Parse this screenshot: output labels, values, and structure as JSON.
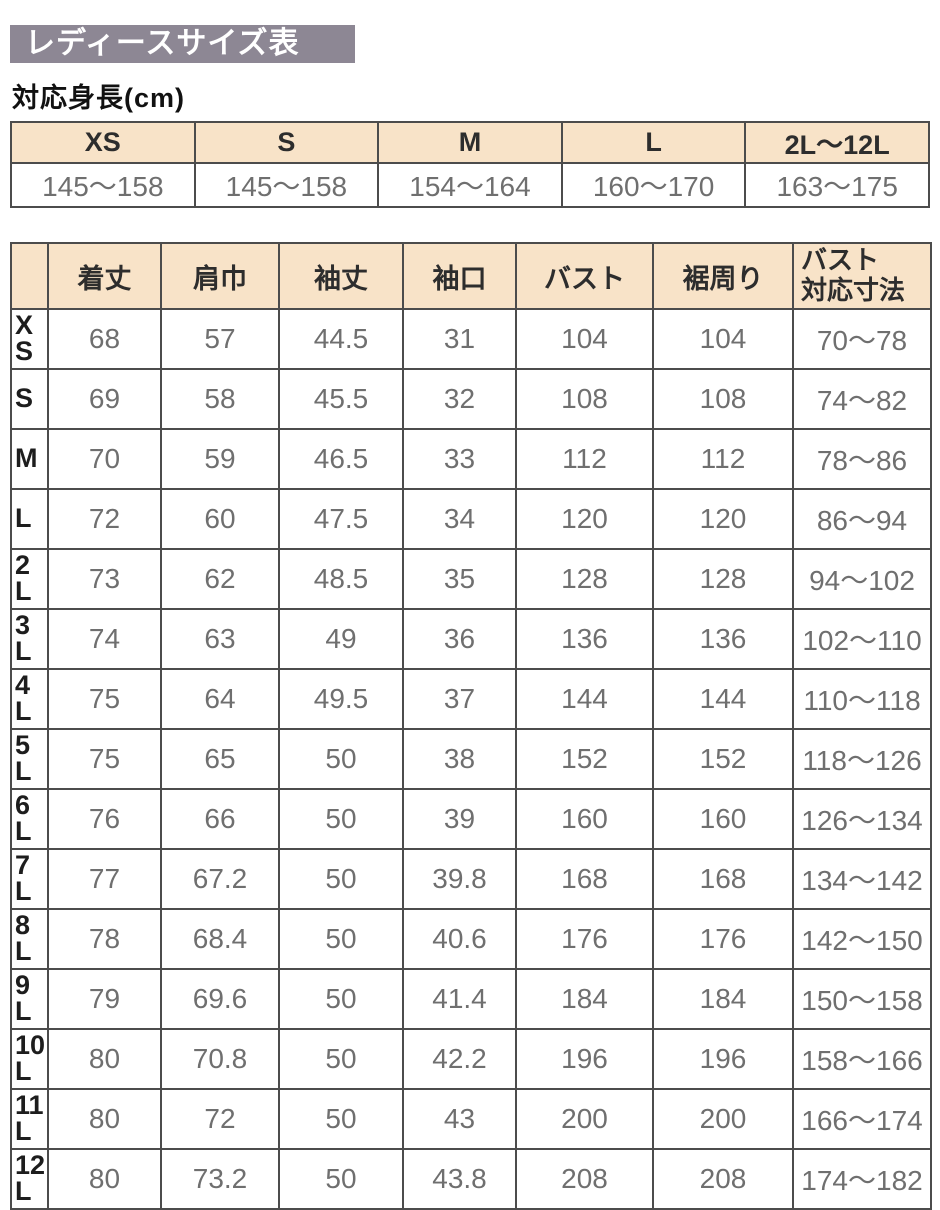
{
  "page": {
    "title": "レディースサイズ表",
    "height_table_title": "対応身長(cm)"
  },
  "height_table": {
    "columns": [
      "XS",
      "S",
      "M",
      "L",
      "2L〜12L"
    ],
    "values": [
      "145〜158",
      "145〜158",
      "154〜164",
      "160〜170",
      "163〜175"
    ]
  },
  "size_table": {
    "corner_label": "",
    "columns": [
      "着丈",
      "肩巾",
      "袖丈",
      "袖口",
      "バスト",
      "裾周り",
      "バスト\n対応寸法"
    ],
    "rows": [
      {
        "label": "XS",
        "values": [
          "68",
          "57",
          "44.5",
          "31",
          "104",
          "104",
          "70〜78"
        ]
      },
      {
        "label": "S",
        "values": [
          "69",
          "58",
          "45.5",
          "32",
          "108",
          "108",
          "74〜82"
        ]
      },
      {
        "label": "M",
        "values": [
          "70",
          "59",
          "46.5",
          "33",
          "112",
          "112",
          "78〜86"
        ]
      },
      {
        "label": "L",
        "values": [
          "72",
          "60",
          "47.5",
          "34",
          "120",
          "120",
          "86〜94"
        ]
      },
      {
        "label": "2L",
        "values": [
          "73",
          "62",
          "48.5",
          "35",
          "128",
          "128",
          "94〜102"
        ]
      },
      {
        "label": "3L",
        "values": [
          "74",
          "63",
          "49",
          "36",
          "136",
          "136",
          "102〜110"
        ]
      },
      {
        "label": "4L",
        "values": [
          "75",
          "64",
          "49.5",
          "37",
          "144",
          "144",
          "110〜118"
        ]
      },
      {
        "label": "5L",
        "values": [
          "75",
          "65",
          "50",
          "38",
          "152",
          "152",
          "118〜126"
        ]
      },
      {
        "label": "6L",
        "values": [
          "76",
          "66",
          "50",
          "39",
          "160",
          "160",
          "126〜134"
        ]
      },
      {
        "label": "7L",
        "values": [
          "77",
          "67.2",
          "50",
          "39.8",
          "168",
          "168",
          "134〜142"
        ]
      },
      {
        "label": "8L",
        "values": [
          "78",
          "68.4",
          "50",
          "40.6",
          "176",
          "176",
          "142〜150"
        ]
      },
      {
        "label": "9L",
        "values": [
          "79",
          "69.6",
          "50",
          "41.4",
          "184",
          "184",
          "150〜158"
        ]
      },
      {
        "label": "10L",
        "values": [
          "80",
          "70.8",
          "50",
          "42.2",
          "196",
          "196",
          "158〜166"
        ]
      },
      {
        "label": "11L",
        "values": [
          "80",
          "72",
          "50",
          "43",
          "200",
          "200",
          "166〜174"
        ]
      },
      {
        "label": "12L",
        "values": [
          "80",
          "73.2",
          "50",
          "43.8",
          "208",
          "208",
          "174〜182"
        ]
      }
    ]
  },
  "colors": {
    "title_bg": "#8d8794",
    "title_text": "#ffffff",
    "header_bg": "#f8e3c8",
    "border": "#4c4c4c",
    "value_text": "#6f6f6f",
    "label_text": "#1d1d1d"
  }
}
